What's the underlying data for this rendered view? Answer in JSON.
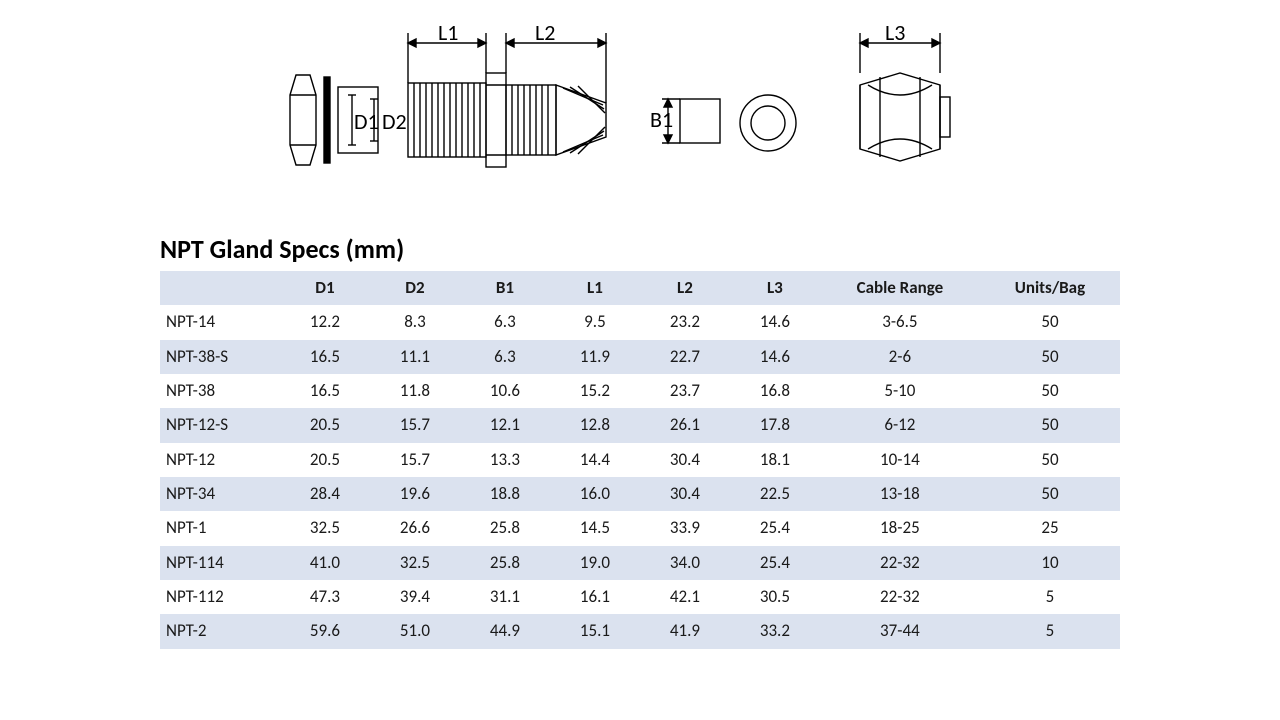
{
  "title": "NPT Gland Specs (mm)",
  "diagram_labels": {
    "L1": "L1",
    "L2": "L2",
    "L3": "L3",
    "D1": "D1",
    "D2": "D2",
    "B1": "B1"
  },
  "diagram_style": {
    "stroke": "#000000",
    "stroke_width": 1.4,
    "label_fontsize": 22
  },
  "table": {
    "header_bg": "#dbe2ef",
    "band_bg": "#dbe2ef",
    "font_size": 17,
    "columns": [
      "",
      "D1",
      "D2",
      "B1",
      "L1",
      "L2",
      "L3",
      "Cable Range",
      "Units/Bag"
    ],
    "rows": [
      [
        "NPT-14",
        "12.2",
        "8.3",
        "6.3",
        "9.5",
        "23.2",
        "14.6",
        "3-6.5",
        "50"
      ],
      [
        "NPT-38-S",
        "16.5",
        "11.1",
        "6.3",
        "11.9",
        "22.7",
        "14.6",
        "2-6",
        "50"
      ],
      [
        "NPT-38",
        "16.5",
        "11.8",
        "10.6",
        "15.2",
        "23.7",
        "16.8",
        "5-10",
        "50"
      ],
      [
        "NPT-12-S",
        "20.5",
        "15.7",
        "12.1",
        "12.8",
        "26.1",
        "17.8",
        "6-12",
        "50"
      ],
      [
        "NPT-12",
        "20.5",
        "15.7",
        "13.3",
        "14.4",
        "30.4",
        "18.1",
        "10-14",
        "50"
      ],
      [
        "NPT-34",
        "28.4",
        "19.6",
        "18.8",
        "16.0",
        "30.4",
        "22.5",
        "13-18",
        "50"
      ],
      [
        "NPT-1",
        "32.5",
        "26.6",
        "25.8",
        "14.5",
        "33.9",
        "25.4",
        "18-25",
        "25"
      ],
      [
        "NPT-114",
        "41.0",
        "32.5",
        "25.8",
        "19.0",
        "34.0",
        "25.4",
        "22-32",
        "10"
      ],
      [
        "NPT-112",
        "47.3",
        "39.4",
        "31.1",
        "16.1",
        "42.1",
        "30.5",
        "22-32",
        "5"
      ],
      [
        "NPT-2",
        "59.6",
        "51.0",
        "44.9",
        "15.1",
        "41.9",
        "33.2",
        "37-44",
        "5"
      ]
    ]
  }
}
